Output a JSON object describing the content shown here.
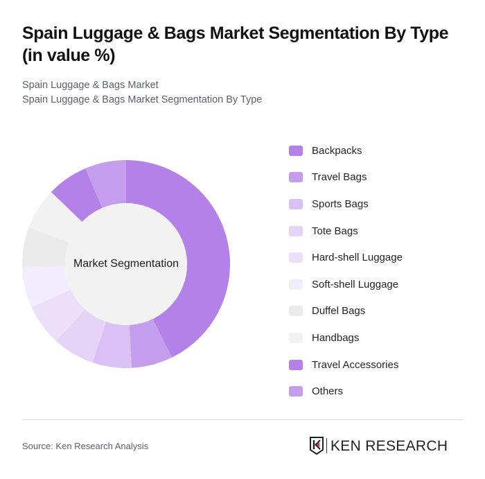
{
  "header": {
    "title": "Spain Luggage & Bags Market Segmentation By Type (in value %)",
    "subtitle_line1": "Spain Luggage & Bags Market",
    "subtitle_line2": "Spain Luggage & Bags Market Segmentation By Type"
  },
  "donut": {
    "center_label": "Market Segmentation"
  },
  "legend": [
    {
      "label": "Backpacks",
      "color": "#b481e9"
    },
    {
      "label": "Travel Bags",
      "color": "#c59ded"
    },
    {
      "label": "Sports Bags",
      "color": "#dbc0f5"
    },
    {
      "label": "Tote Bags",
      "color": "#e5d3f8"
    },
    {
      "label": "Hard-shell Luggage",
      "color": "#ecdffa"
    },
    {
      "label": "Soft-shell Luggage",
      "color": "#f3ecfc"
    },
    {
      "label": "Duffel Bags",
      "color": "#ebebeb"
    },
    {
      "label": "Handbags",
      "color": "#f2f2f2"
    },
    {
      "label": "Travel Accessories",
      "color": "#b481e9"
    },
    {
      "label": "Others",
      "color": "#c59ded"
    }
  ],
  "footer": {
    "source": "Source: Ken Research Analysis",
    "logo_text": "KEN RESEARCH"
  },
  "chart_data": {
    "type": "pie",
    "subtype": "donut",
    "title": "Spain Luggage & Bags Market Segmentation By Type (in value %)",
    "center_label": "Market Segmentation",
    "categories": [
      "Backpacks",
      "Travel Bags",
      "Sports Bags",
      "Tote Bags",
      "Hard-shell Luggage",
      "Soft-shell Luggage",
      "Duffel Bags",
      "Handbags",
      "Travel Accessories",
      "Others"
    ],
    "values": [
      42.7,
      6.4,
      6.1,
      6.5,
      6.4,
      6.3,
      6.3,
      6.4,
      6.4,
      6.4
    ],
    "colors": [
      "#b481e9",
      "#c59ded",
      "#dbc0f5",
      "#e5d3f8",
      "#ecdffa",
      "#f3ecfc",
      "#ebebeb",
      "#f2f2f2",
      "#b481e9",
      "#c59ded"
    ],
    "start_angle": "12 o'clock, clockwise",
    "legend_position": "right",
    "data_labels": false
  }
}
